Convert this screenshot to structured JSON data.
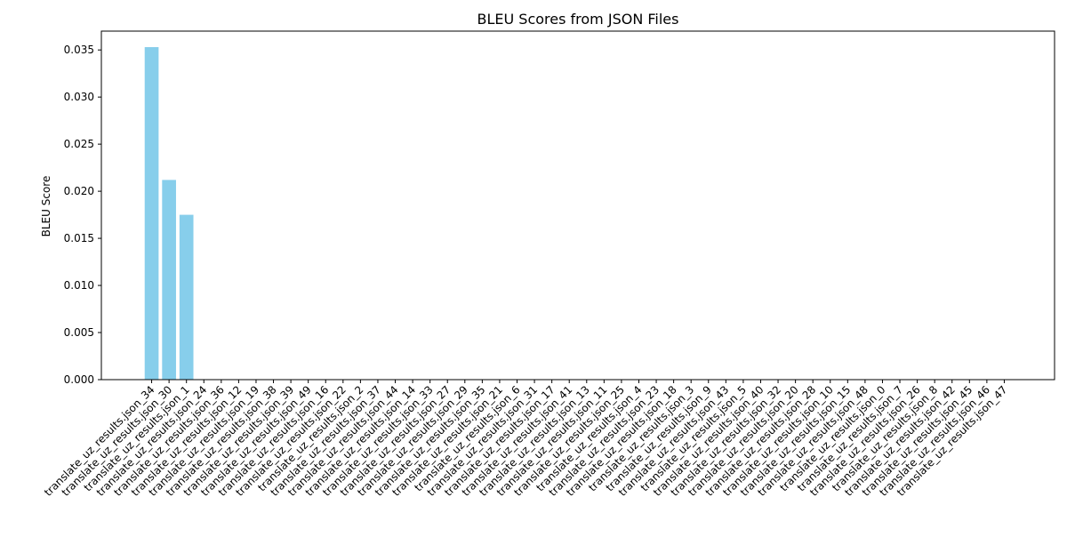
{
  "chart_data": {
    "type": "bar",
    "title": "BLEU Scores from JSON Files",
    "xlabel": "",
    "ylabel": "BLEU Score",
    "ylim": [
      0,
      0.037
    ],
    "yticks": [
      0.0,
      0.005,
      0.01,
      0.015,
      0.02,
      0.025,
      0.03,
      0.035
    ],
    "ytick_labels": [
      "0.000",
      "0.005",
      "0.010",
      "0.015",
      "0.020",
      "0.025",
      "0.030",
      "0.035"
    ],
    "grid": false,
    "legend": "none",
    "bar_color": "#87CEEB",
    "categories": [
      "translate_uz_results.json_34",
      "translate_uz_results.json_30",
      "translate_uz_results.json_1",
      "translate_uz_results.json_24",
      "translate_uz_results.json_36",
      "translate_uz_results.json_12",
      "translate_uz_results.json_19",
      "translate_uz_results.json_38",
      "translate_uz_results.json_39",
      "translate_uz_results.json_49",
      "translate_uz_results.json_16",
      "translate_uz_results.json_22",
      "translate_uz_results.json_2",
      "translate_uz_results.json_37",
      "translate_uz_results.json_44",
      "translate_uz_results.json_14",
      "translate_uz_results.json_33",
      "translate_uz_results.json_27",
      "translate_uz_results.json_29",
      "translate_uz_results.json_35",
      "translate_uz_results.json_21",
      "translate_uz_results.json_6",
      "translate_uz_results.json_31",
      "translate_uz_results.json_17",
      "translate_uz_results.json_41",
      "translate_uz_results.json_13",
      "translate_uz_results.json_11",
      "translate_uz_results.json_25",
      "translate_uz_results.json_4",
      "translate_uz_results.json_23",
      "translate_uz_results.json_18",
      "translate_uz_results.json_3",
      "translate_uz_results.json_9",
      "translate_uz_results.json_43",
      "translate_uz_results.json_5",
      "translate_uz_results.json_40",
      "translate_uz_results.json_32",
      "translate_uz_results.json_20",
      "translate_uz_results.json_28",
      "translate_uz_results.json_10",
      "translate_uz_results.json_15",
      "translate_uz_results.json_48",
      "translate_uz_results.json_0",
      "translate_uz_results.json_7",
      "translate_uz_results.json_26",
      "translate_uz_results.json_8",
      "translate_uz_results.json_42",
      "translate_uz_results.json_45",
      "translate_uz_results.json_46",
      "translate_uz_results.json_47"
    ],
    "values": [
      0.0353,
      0.0212,
      0.0175,
      0,
      0,
      0,
      0,
      0,
      0,
      0,
      0,
      0,
      0,
      0,
      0,
      0,
      0,
      0,
      0,
      0,
      0,
      0,
      0,
      0,
      0,
      0,
      0,
      0,
      0,
      0,
      0,
      0,
      0,
      0,
      0,
      0,
      0,
      0,
      0,
      0,
      0,
      0,
      0,
      0,
      0,
      0,
      0,
      0,
      0,
      0
    ]
  }
}
